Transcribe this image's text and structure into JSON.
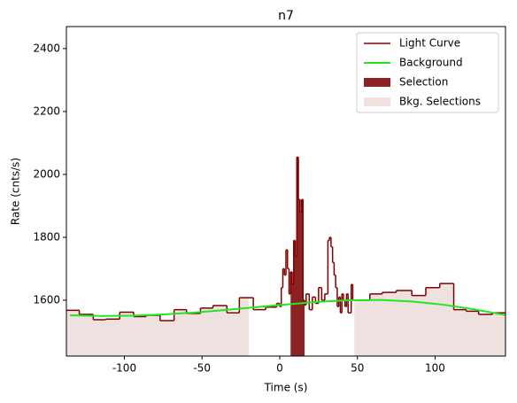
{
  "chart_data": {
    "type": "line",
    "title": "n7",
    "x_label": "Time (s)",
    "y_label": "Rate (cnts/s)",
    "xlim": [
      -137.3,
      145.3
    ],
    "ylim": [
      1422.5,
      2470
    ],
    "xticks": [
      -100,
      -50,
      0,
      50,
      100
    ],
    "yticks": [
      1600,
      1800,
      2000,
      2200,
      2400
    ],
    "legend": "upper right",
    "series": [
      {
        "name": "Light Curve",
        "color": "#800000",
        "x": [
          -137,
          -129,
          -120,
          -112,
          -103,
          -94,
          -86,
          -77,
          -68,
          -60,
          -51,
          -43,
          -34,
          -26,
          -17,
          -9,
          -2,
          0,
          1,
          2,
          3,
          4,
          5,
          6,
          7,
          8,
          9,
          10,
          11,
          12,
          13,
          14,
          15,
          16,
          17,
          19,
          21,
          23,
          25,
          27,
          29,
          31,
          32,
          33,
          34,
          35,
          36,
          37,
          38,
          39,
          40,
          41,
          42,
          43,
          44,
          46,
          47,
          48,
          58,
          66,
          75,
          85,
          94,
          103,
          112,
          120,
          128,
          137
        ],
        "values": [
          1568,
          1555,
          1538,
          1540,
          1562,
          1548,
          1552,
          1535,
          1570,
          1558,
          1575,
          1583,
          1560,
          1608,
          1570,
          1578,
          1590,
          1580,
          1640,
          1700,
          1680,
          1760,
          1700,
          1620,
          1690,
          1650,
          1790,
          1740,
          2055,
          1920,
          1880,
          1920,
          1600,
          1585,
          1620,
          1570,
          1610,
          1590,
          1640,
          1600,
          1620,
          1790,
          1800,
          1770,
          1720,
          1680,
          1640,
          1580,
          1610,
          1560,
          1620,
          1600,
          1580,
          1620,
          1560,
          1650,
          1600,
          1600,
          1620,
          1625,
          1631,
          1615,
          1640,
          1653,
          1570,
          1565,
          1555,
          1560
        ]
      },
      {
        "name": "Background",
        "color": "#1fe81f",
        "x": [
          -135,
          -115,
          -95,
          -75,
          -55,
          -35,
          -15,
          5,
          25,
          45,
          65,
          85,
          105,
          125,
          145
        ],
        "values": [
          1552,
          1550,
          1551,
          1555,
          1561,
          1569,
          1578,
          1587,
          1595,
          1600,
          1601,
          1596,
          1586,
          1571,
          1553
        ]
      }
    ],
    "selection": {
      "name": "Selection",
      "color": "#8b2323",
      "range": [
        7,
        16
      ]
    },
    "bkg_selections": {
      "name": "Bkg. Selections",
      "color": "#f0e1e1",
      "ranges": [
        [
          -137.3,
          -20
        ],
        [
          48,
          145.3
        ]
      ]
    }
  }
}
